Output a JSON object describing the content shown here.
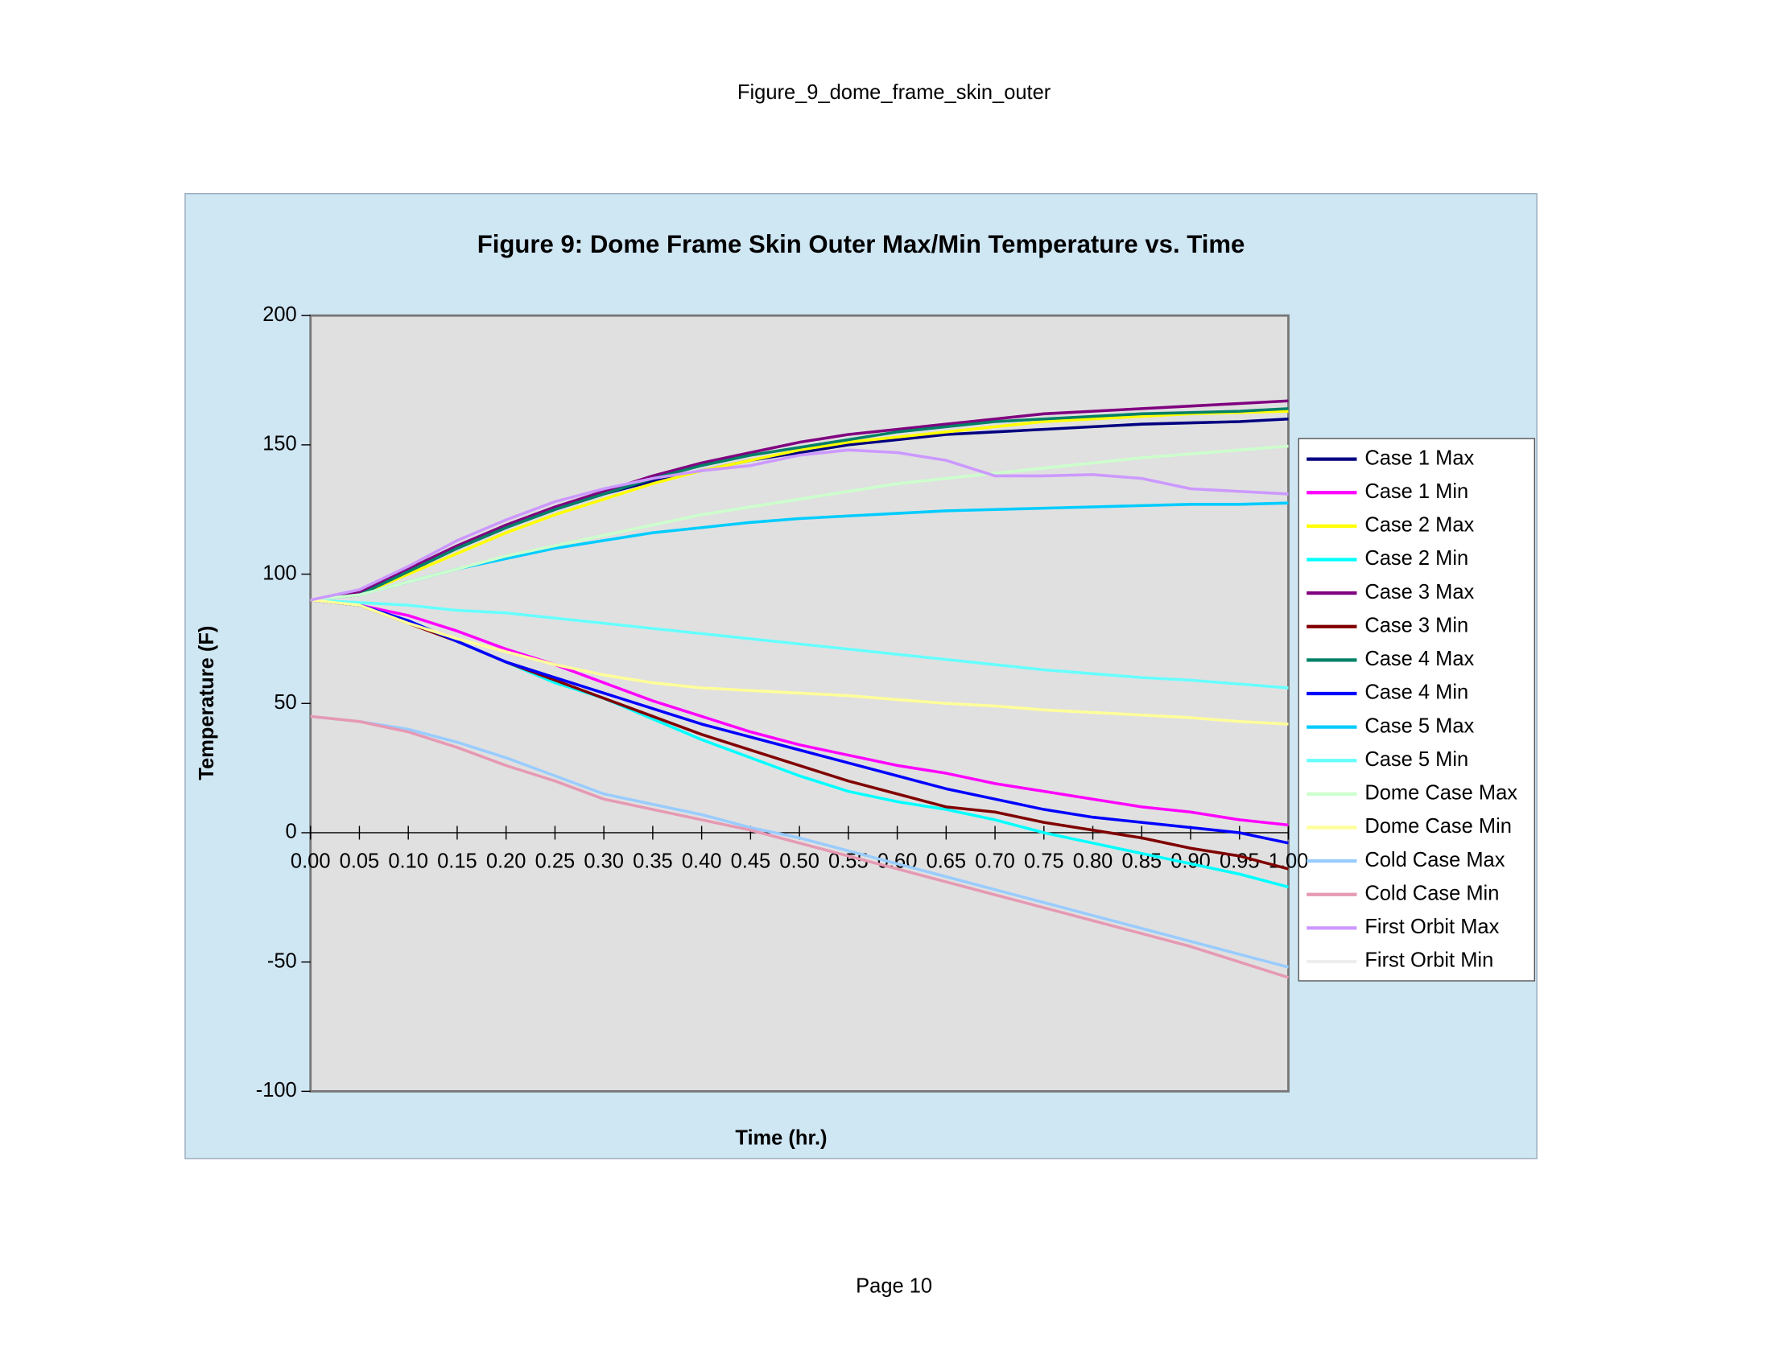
{
  "page_title": "Figure_9_dome_frame_skin_outer",
  "footer": "Page 10",
  "chart_data": {
    "type": "line",
    "title": "Figure 9: Dome Frame Skin Outer Max/Min Temperature vs. Time",
    "x_label": "Time (hr.)",
    "y_label": "Temperature (F)",
    "x": [
      0,
      0.05,
      0.1,
      0.15,
      0.2,
      0.25,
      0.3,
      0.35,
      0.4,
      0.45,
      0.5,
      0.55,
      0.6,
      0.65,
      0.7,
      0.75,
      0.8,
      0.85,
      0.9,
      0.95,
      1.0
    ],
    "xlim": [
      0,
      1.0
    ],
    "xticks": [
      {
        "value": 0,
        "label": "0.00"
      },
      0.05,
      {
        "value": 0.1,
        "label": "0.10"
      },
      0.15,
      {
        "value": 0.2,
        "label": "0.20"
      },
      0.25,
      {
        "value": 0.3,
        "label": "0.30"
      },
      0.35,
      {
        "value": 0.4,
        "label": "0.40"
      },
      0.45,
      {
        "value": 0.5,
        "label": "0.50"
      },
      0.55,
      {
        "value": 0.6,
        "label": "0.60"
      },
      0.65,
      {
        "value": 0.7,
        "label": "0.70"
      },
      0.75,
      {
        "value": 0.8,
        "label": "0.80"
      },
      0.85,
      {
        "value": 0.9,
        "label": "0.90"
      },
      0.95,
      {
        "value": 1.0,
        "label": "1.00"
      }
    ],
    "ylim": [
      -100,
      200
    ],
    "yticks": [
      200,
      150,
      100,
      50,
      0,
      -50,
      -100
    ],
    "legend": "right",
    "series": [
      {
        "name": "Case 1 Max",
        "color": "#000080",
        "values": [
          90,
          92,
          101,
          110,
          118,
          125,
          131,
          136,
          140,
          144,
          147,
          150,
          152,
          154,
          155,
          156,
          157,
          158,
          158.5,
          159,
          160
        ]
      },
      {
        "name": "Case 1 Min",
        "color": "#ff00ff",
        "values": [
          90,
          88,
          84,
          78,
          71,
          65,
          58,
          51,
          45,
          39,
          34,
          30,
          26,
          23,
          19,
          16,
          13,
          10,
          8,
          5,
          3
        ]
      },
      {
        "name": "Case 2 Max",
        "color": "#ffff00",
        "values": [
          90,
          92,
          100,
          108,
          116,
          123,
          129,
          135,
          140,
          144,
          148,
          151,
          153,
          155,
          157,
          159,
          160,
          161,
          162,
          162.5,
          163
        ]
      },
      {
        "name": "Case 2 Min",
        "color": "#00ffff",
        "values": [
          90,
          88,
          82,
          74,
          66,
          58,
          52,
          44,
          36,
          29,
          22,
          16,
          12,
          9,
          5,
          0,
          -4,
          -8,
          -12,
          -16,
          -21
        ]
      },
      {
        "name": "Case 3 Max",
        "color": "#800080",
        "values": [
          90,
          93,
          102,
          111,
          119,
          126,
          132,
          138,
          143,
          147,
          151,
          154,
          156,
          158,
          160,
          162,
          163,
          164,
          165,
          166,
          167
        ]
      },
      {
        "name": "Case 3 Min",
        "color": "#800000",
        "values": [
          90,
          88,
          81,
          74,
          66,
          59,
          52,
          45,
          38,
          32,
          26,
          20,
          15,
          10,
          8,
          4,
          1,
          -2,
          -6,
          -9,
          -14
        ]
      },
      {
        "name": "Case 4 Max",
        "color": "#008066",
        "values": [
          90,
          92,
          101,
          110,
          118,
          125,
          131,
          137,
          142,
          146,
          149,
          152,
          155,
          157,
          159,
          160,
          161,
          162,
          162.5,
          163,
          164
        ]
      },
      {
        "name": "Case 4 Min",
        "color": "#0000ff",
        "values": [
          90,
          88,
          82,
          74,
          66,
          60,
          54,
          48,
          42,
          37,
          32,
          27,
          22,
          17,
          13,
          9,
          6,
          4,
          2,
          0,
          -4
        ]
      },
      {
        "name": "Case 5 Max",
        "color": "#00ccff",
        "values": [
          90,
          92,
          97,
          102,
          106,
          110,
          113,
          116,
          118,
          120,
          121.5,
          122.5,
          123.5,
          124.5,
          125,
          125.5,
          126,
          126.5,
          127,
          127,
          127.5
        ]
      },
      {
        "name": "Case 5 Min",
        "color": "#66ffff",
        "values": [
          90,
          89,
          88,
          86,
          85,
          83,
          81,
          79,
          77,
          75,
          73,
          71,
          69,
          67,
          65,
          63,
          61.5,
          60,
          59,
          57.5,
          56
        ]
      },
      {
        "name": "Dome Case Max",
        "color": "#ccffcc",
        "values": [
          90,
          92,
          97,
          102,
          107,
          111,
          115,
          119,
          123,
          126,
          129,
          132,
          135,
          137,
          139,
          141,
          143,
          145,
          146.5,
          148,
          149.5
        ]
      },
      {
        "name": "Dome Case Min",
        "color": "#ffff99",
        "values": [
          90,
          88,
          81,
          75,
          70,
          65,
          61,
          58,
          56,
          55,
          54,
          53,
          51.5,
          50,
          49,
          47.5,
          46.5,
          45.5,
          44.5,
          43,
          42
        ]
      },
      {
        "name": "Cold Case Max",
        "color": "#99ccff",
        "values": [
          45,
          43,
          40,
          35,
          29,
          22,
          15,
          11,
          7,
          2,
          -2,
          -7,
          -12,
          -17,
          -22,
          -27,
          -32,
          -37,
          -42,
          -47,
          -52
        ]
      },
      {
        "name": "Cold Case Min",
        "color": "#e699b3",
        "values": [
          45,
          43,
          39,
          33,
          26,
          20,
          13,
          9,
          5,
          1,
          -4,
          -9,
          -14,
          -19,
          -24,
          -29,
          -34,
          -39,
          -44,
          -50,
          -56
        ]
      },
      {
        "name": "First Orbit Max",
        "color": "#cc99ff",
        "values": [
          90,
          94,
          103,
          113,
          121,
          128,
          133,
          137,
          140,
          142,
          146,
          148,
          147,
          144,
          138,
          138,
          138.5,
          137,
          133,
          132,
          131
        ]
      },
      {
        "name": "First Orbit Min",
        "color": "#eeeeee",
        "values": [
          null,
          null,
          null,
          null,
          null,
          null,
          null,
          null,
          null,
          null,
          null,
          null,
          null,
          null,
          null,
          null,
          null,
          null,
          null,
          null,
          null
        ]
      }
    ]
  }
}
